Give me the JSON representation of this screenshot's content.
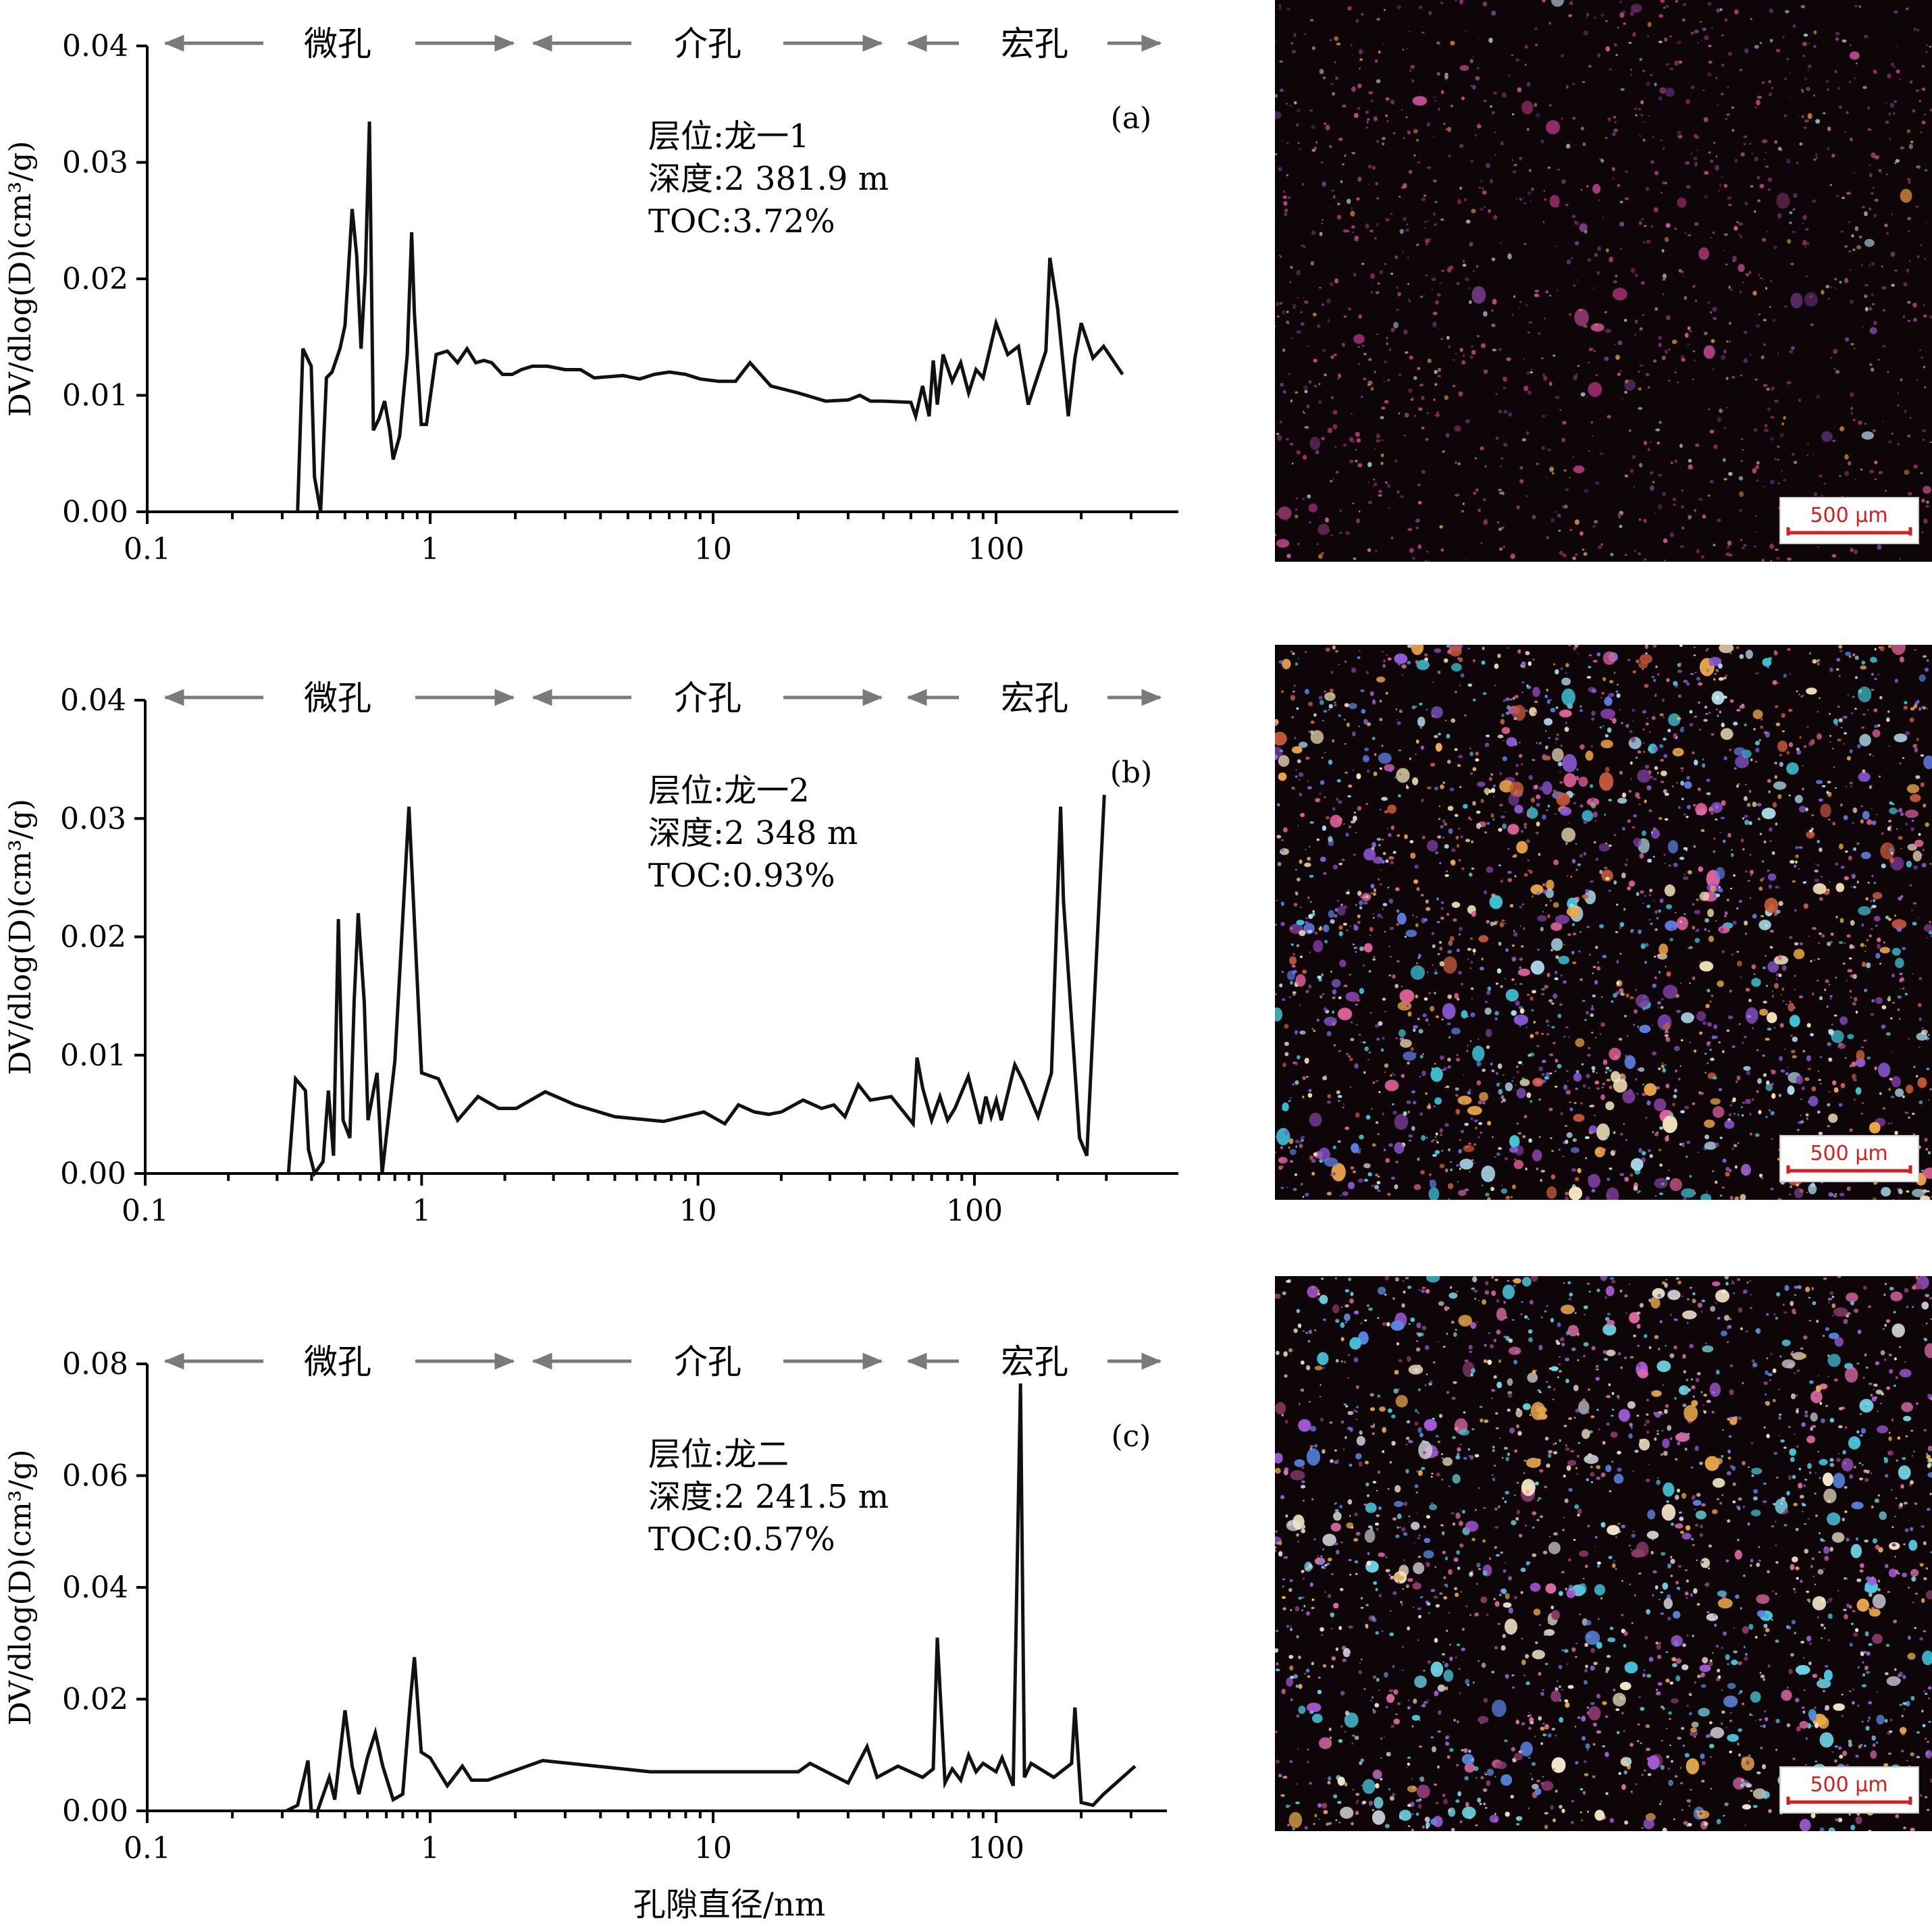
{
  "chart_data": [
    {
      "type": "line",
      "panel": "(a)",
      "x_scale": "log",
      "xlim": [
        0.1,
        330
      ],
      "ylim": [
        0,
        0.04
      ],
      "x_ticks": [
        "0.1",
        "1",
        "10",
        "100"
      ],
      "y_ticks": [
        "0.00",
        "0.01",
        "0.02",
        "0.03",
        "0.04"
      ],
      "ylabel": "DV/dlog(D)(cm³/g)",
      "xlabel": "",
      "regions": [
        "微孔",
        "介孔",
        "宏孔"
      ],
      "info": [
        "层位:龙一1",
        "深度:2 381.9 m",
        "TOC:3.72%"
      ],
      "series": [
        {
          "x": [
            0.34,
            0.355,
            0.38,
            0.39,
            0.41,
            0.43,
            0.45,
            0.48,
            0.5,
            0.53,
            0.55,
            0.57,
            0.59,
            0.61,
            0.63,
            0.66,
            0.69,
            0.72,
            0.74,
            0.78,
            0.83,
            0.86,
            0.88,
            0.93,
            0.97,
            1.05,
            1.15,
            1.25,
            1.35,
            1.45,
            1.55,
            1.65,
            1.8,
            1.95,
            2.1,
            2.3,
            2.6,
            3.0,
            3.4,
            3.8,
            4.3,
            4.8,
            5.5,
            6.2,
            7.0,
            8.0,
            9.0,
            10.5,
            12.0,
            13.5,
            16.0,
            20.0,
            25.0,
            30.0,
            33.0,
            36.0,
            40.0,
            50.0,
            52.0,
            55.0,
            58.0,
            60.0,
            62.0,
            65.0,
            70.0,
            75.0,
            80.0,
            85.0,
            90.0,
            100.0,
            110.0,
            120.0,
            130.0,
            150.0,
            155.0,
            165.0,
            180.0,
            190.0,
            200.0,
            220.0,
            240.0,
            280.0
          ],
          "y": [
            0.0,
            0.014,
            0.0125,
            0.003,
            0.0,
            0.0115,
            0.012,
            0.014,
            0.016,
            0.026,
            0.022,
            0.014,
            0.0205,
            0.0335,
            0.007,
            0.008,
            0.0095,
            0.007,
            0.0045,
            0.0065,
            0.0135,
            0.024,
            0.017,
            0.0075,
            0.0075,
            0.0135,
            0.0138,
            0.0128,
            0.014,
            0.0128,
            0.013,
            0.0128,
            0.0118,
            0.0118,
            0.0122,
            0.0125,
            0.0125,
            0.0122,
            0.0122,
            0.0115,
            0.0116,
            0.0117,
            0.0114,
            0.0118,
            0.012,
            0.0118,
            0.0114,
            0.0112,
            0.0112,
            0.0128,
            0.0108,
            0.0102,
            0.0095,
            0.0096,
            0.01,
            0.0095,
            0.0095,
            0.0094,
            0.0082,
            0.0108,
            0.0082,
            0.013,
            0.0092,
            0.0135,
            0.0112,
            0.0128,
            0.0102,
            0.0122,
            0.0115,
            0.0162,
            0.0135,
            0.0142,
            0.0092,
            0.0138,
            0.0218,
            0.0175,
            0.0082,
            0.0132,
            0.0162,
            0.0132,
            0.0142,
            0.0118
          ]
        }
      ]
    },
    {
      "type": "line",
      "panel": "(b)",
      "x_scale": "log",
      "xlim": [
        0.1,
        330
      ],
      "ylim": [
        0,
        0.04
      ],
      "x_ticks": [
        "0.1",
        "1",
        "10",
        "100"
      ],
      "y_ticks": [
        "0.00",
        "0.01",
        "0.02",
        "0.03",
        "0.04"
      ],
      "ylabel": "DV/dlog(D)(cm³/g)",
      "xlabel": "",
      "regions": [
        "微孔",
        "介孔",
        "宏孔"
      ],
      "info": [
        "层位:龙一2",
        "深度:2 348 m",
        "TOC:0.93%"
      ],
      "series": [
        {
          "x": [
            0.33,
            0.35,
            0.38,
            0.39,
            0.41,
            0.44,
            0.46,
            0.48,
            0.5,
            0.52,
            0.55,
            0.57,
            0.59,
            0.62,
            0.64,
            0.67,
            0.69,
            0.72,
            0.8,
            0.9,
            1.0,
            1.15,
            1.35,
            1.6,
            1.9,
            2.2,
            2.8,
            3.6,
            5.0,
            7.5,
            10.5,
            12.5,
            14.0,
            16.0,
            18.0,
            20.0,
            24.0,
            28.0,
            31.0,
            34.0,
            38.0,
            42.0,
            50.0,
            60.0,
            62.0,
            65.0,
            70.0,
            75.0,
            80.0,
            85.0,
            95.0,
            105.0,
            110.0,
            115.0,
            120.0,
            125.0,
            140.0,
            150.0,
            170.0,
            190.0,
            205.0,
            210.0,
            240.0,
            255.0,
            295.0
          ],
          "y": [
            0.0,
            0.008,
            0.007,
            0.002,
            0.0,
            0.001,
            0.007,
            0.0015,
            0.0215,
            0.0045,
            0.003,
            0.0145,
            0.022,
            0.0145,
            0.0045,
            0.007,
            0.0085,
            0.0,
            0.0095,
            0.031,
            0.0085,
            0.008,
            0.0045,
            0.0065,
            0.0055,
            0.0055,
            0.0069,
            0.0058,
            0.0048,
            0.0044,
            0.0052,
            0.0042,
            0.0058,
            0.0052,
            0.005,
            0.0052,
            0.0062,
            0.0055,
            0.0058,
            0.0048,
            0.0075,
            0.0062,
            0.0065,
            0.0042,
            0.0098,
            0.0072,
            0.0045,
            0.0065,
            0.0045,
            0.0055,
            0.0082,
            0.0042,
            0.0065,
            0.0048,
            0.0062,
            0.0045,
            0.0092,
            0.0078,
            0.0048,
            0.0085,
            0.031,
            0.023,
            0.003,
            0.0015,
            0.032
          ]
        }
      ]
    },
    {
      "type": "line",
      "panel": "(c)",
      "x_scale": "log",
      "xlim": [
        0.1,
        330
      ],
      "ylim": [
        0,
        0.08
      ],
      "x_ticks": [
        "0.1",
        "1",
        "10",
        "100"
      ],
      "y_ticks": [
        "0.00",
        "0.02",
        "0.04",
        "0.06",
        "0.08"
      ],
      "ylabel": "DV/dlog(D)(cm³/g)",
      "xlabel": "孔隙直径/nm",
      "regions": [
        "微孔",
        "介孔",
        "宏孔"
      ],
      "info": [
        "层位:龙二",
        "深度:2 241.5 m",
        "TOC:0.57%"
      ],
      "series": [
        {
          "x": [
            0.31,
            0.34,
            0.37,
            0.38,
            0.4,
            0.44,
            0.46,
            0.5,
            0.53,
            0.56,
            0.6,
            0.64,
            0.68,
            0.74,
            0.8,
            0.85,
            0.88,
            0.93,
            1.0,
            1.15,
            1.3,
            1.4,
            1.6,
            2.5,
            6.0,
            9.0,
            12.0,
            20.0,
            22.0,
            30.0,
            35.0,
            38.0,
            45.0,
            55.0,
            60.0,
            62.0,
            66.0,
            70.0,
            75.0,
            80.0,
            85.0,
            90.0,
            100.0,
            105.0,
            115.0,
            122.0,
            126.0,
            133.0,
            160.0,
            185.0,
            190.0,
            200.0,
            220.0,
            240.0,
            310.0
          ],
          "y": [
            0.0,
            0.001,
            0.009,
            0.0,
            0.0,
            0.006,
            0.002,
            0.018,
            0.008,
            0.003,
            0.0095,
            0.014,
            0.008,
            0.002,
            0.003,
            0.0195,
            0.0275,
            0.0105,
            0.0095,
            0.0045,
            0.008,
            0.0055,
            0.0055,
            0.009,
            0.007,
            0.007,
            0.007,
            0.007,
            0.0085,
            0.005,
            0.0115,
            0.006,
            0.008,
            0.006,
            0.0075,
            0.031,
            0.005,
            0.0075,
            0.0055,
            0.01,
            0.007,
            0.0085,
            0.007,
            0.0095,
            0.0045,
            0.0765,
            0.006,
            0.0085,
            0.006,
            0.0085,
            0.0185,
            0.0015,
            0.001,
            0.003,
            0.008
          ]
        }
      ]
    }
  ],
  "micrographs": [
    {
      "scale_label": "500 µm"
    },
    {
      "scale_label": "500 µm"
    },
    {
      "scale_label": "500 µm"
    }
  ]
}
